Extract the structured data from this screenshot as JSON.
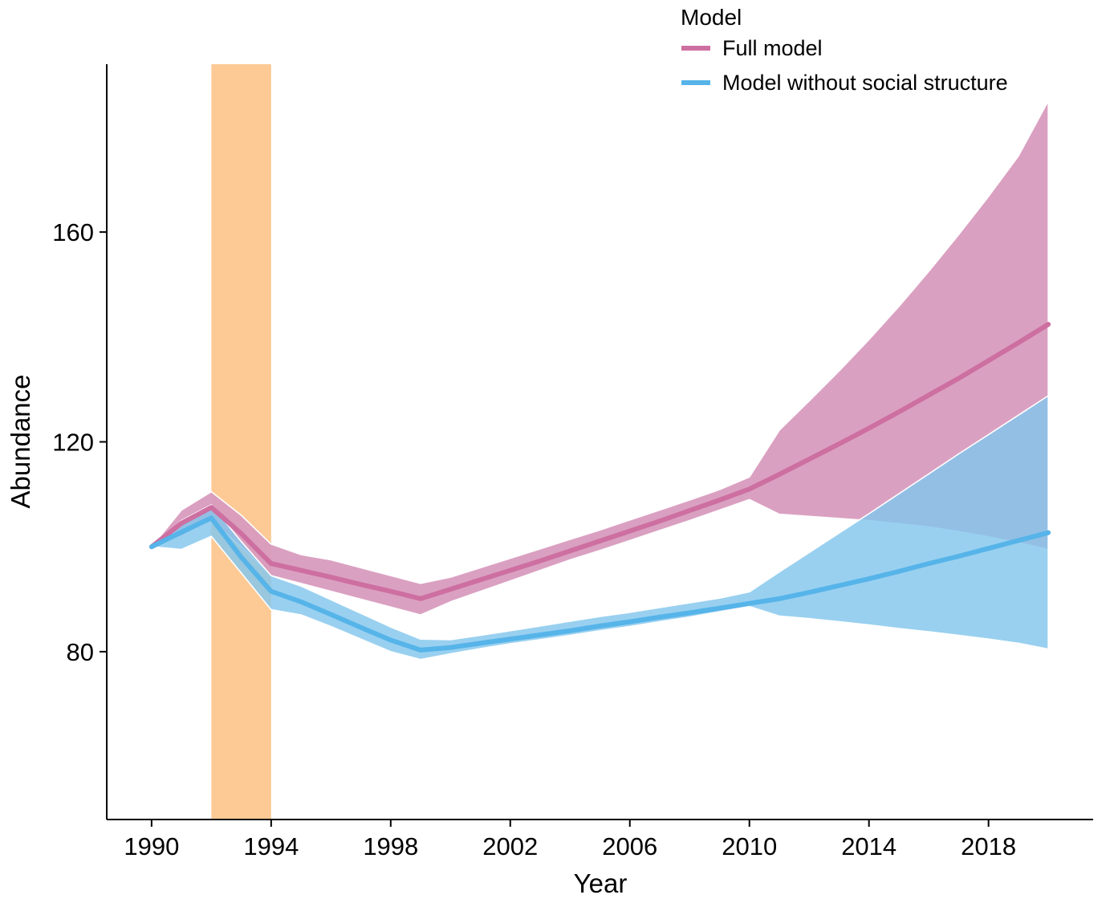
{
  "chart_data": {
    "type": "line",
    "xlabel": "Year",
    "ylabel": "Abundance",
    "xlim": [
      1988.5,
      2021.5
    ],
    "ylim": [
      48,
      192
    ],
    "x_ticks": [
      1990,
      1994,
      1998,
      2002,
      2006,
      2010,
      2014,
      2018
    ],
    "y_ticks": [
      80,
      120,
      160
    ],
    "grid": false,
    "highlight_band": {
      "x_start": 1992,
      "x_end": 1994,
      "color": "#FDCA96"
    },
    "legend": {
      "title": "Model",
      "position": "top-right"
    },
    "x": [
      1990,
      1991,
      1992,
      1993,
      1994,
      1995,
      1996,
      1997,
      1998,
      1999,
      2000,
      2001,
      2002,
      2003,
      2004,
      2005,
      2006,
      2007,
      2008,
      2009,
      2010,
      2011,
      2012,
      2013,
      2014,
      2015,
      2016,
      2017,
      2018,
      2019,
      2020
    ],
    "series": [
      {
        "name": "Full model",
        "color": "#CD6FA0",
        "band_color": "#D89BBE",
        "values": [
          100,
          104.5,
          107.5,
          102.5,
          96.8,
          95.5,
          94.2,
          92.8,
          91.5,
          90.1,
          91.9,
          93.7,
          95.5,
          97.3,
          99.2,
          101.1,
          103.0,
          104.9,
          106.9,
          108.9,
          111.0,
          113.8,
          116.7,
          119.6,
          122.6,
          125.7,
          128.9,
          132.1,
          135.5,
          138.9,
          142.4
        ],
        "lower": [
          100,
          102,
          105,
          100,
          94.5,
          93,
          91.5,
          90,
          88.5,
          87,
          89.5,
          91.5,
          93.5,
          95.5,
          97.5,
          99.3,
          101.2,
          103.1,
          105.0,
          107.0,
          109.0,
          106.2,
          105.8,
          105.4,
          105.0,
          104.4,
          103.8,
          102.9,
          101.9,
          100.8,
          99.5
        ],
        "upper": [
          100,
          107,
          110.5,
          106,
          100.5,
          98.5,
          97.5,
          96,
          94.5,
          93,
          94.2,
          96,
          97.8,
          99.6,
          101.4,
          103.2,
          105.1,
          107.0,
          108.9,
          110.9,
          113.3,
          122.2,
          127.8,
          133.5,
          139.5,
          145.8,
          152.5,
          159.5,
          166.8,
          174.5,
          185.0
        ]
      },
      {
        "name": "Model without social structure",
        "color": "#56B4E9",
        "band_color": "#82C6ED",
        "values": [
          100,
          102.8,
          105.5,
          98,
          91.5,
          89.5,
          87.1,
          84.6,
          82.2,
          80.3,
          80.8,
          81.6,
          82.4,
          83.2,
          84.0,
          84.9,
          85.7,
          86.6,
          87.4,
          88.3,
          89.2,
          90.1,
          91.3,
          92.6,
          93.9,
          95.3,
          96.8,
          98.2,
          99.7,
          101.2,
          102.7
        ],
        "lower": [
          100,
          99.5,
          102,
          95,
          88,
          87,
          84.8,
          82.4,
          80.0,
          78.5,
          79.6,
          80.6,
          81.5,
          82.3,
          83.1,
          84.0,
          84.8,
          85.7,
          86.6,
          87.6,
          88.6,
          86.8,
          86.3,
          85.7,
          85.1,
          84.4,
          83.8,
          83.1,
          82.4,
          81.6,
          80.5
        ],
        "upper": [
          100,
          105,
          108,
          101,
          94.5,
          92.5,
          89.9,
          87.3,
          84.7,
          82.4,
          82.3,
          83.1,
          84.0,
          84.9,
          85.8,
          86.7,
          87.5,
          88.4,
          89.3,
          90.2,
          91.4,
          95.2,
          98.9,
          102.6,
          106.3,
          110.1,
          113.9,
          117.7,
          121.4,
          125.1,
          128.8
        ]
      }
    ]
  }
}
